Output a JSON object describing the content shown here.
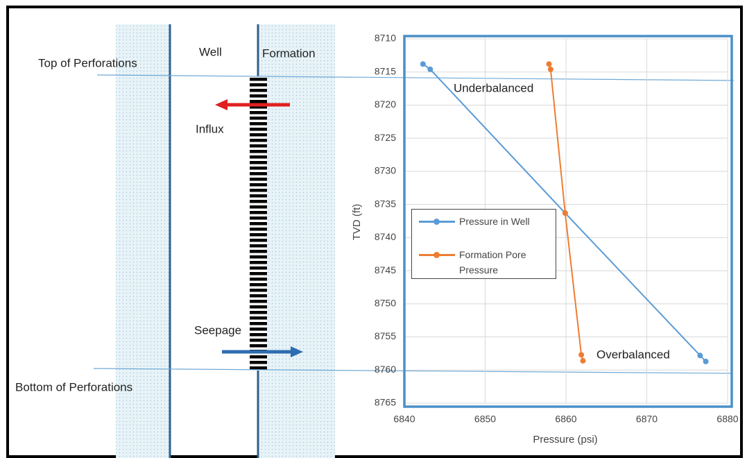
{
  "diagram": {
    "top_label": "Top of Perforations",
    "bottom_label": "Bottom of Perforations",
    "well_label": "Well",
    "formation_label": "Formation",
    "influx_label": "Influx",
    "seepage_label": "Seepage"
  },
  "chart_data": {
    "type": "line",
    "x_label": "Pressure (psi)",
    "y_label": "TVD (ft)",
    "xlim": [
      6840,
      6880
    ],
    "xticks": [
      6840,
      6850,
      6860,
      6870,
      6880
    ],
    "ylim": [
      8710,
      8765
    ],
    "yticks": [
      8710,
      8715,
      8720,
      8725,
      8730,
      8735,
      8740,
      8745,
      8750,
      8755,
      8760,
      8765
    ],
    "y_inverted": true,
    "grid": true,
    "annotations": [
      "Underbalanced",
      "Overbalanced"
    ],
    "series": [
      {
        "name": "Pressure in Well",
        "color": "#5b9bd5",
        "x": [
          6842.3,
          6843.2,
          6859.9,
          6876.6,
          6877.3
        ],
        "values": [
          8713.8,
          8714.6,
          8736.3,
          8757.8,
          8758.7
        ]
      },
      {
        "name": "Formation Pore Pressure",
        "color": "#ed7d31",
        "x": [
          6857.9,
          6858.1,
          6859.9,
          6861.9,
          6862.1
        ],
        "values": [
          8713.8,
          8714.6,
          8736.3,
          8757.7,
          8758.6
        ]
      }
    ]
  }
}
